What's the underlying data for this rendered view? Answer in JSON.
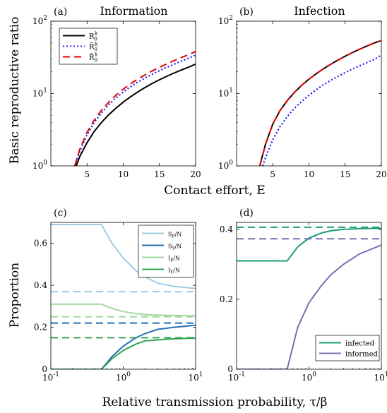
{
  "shared": {
    "top_xlabel": "Contact effort, E",
    "top_ylabel": "Basic reproductive ratio",
    "bottom_xlabel": "Relative transmission probability, τ/β",
    "bottom_ylabel": "Proportion"
  },
  "chart_data": [
    {
      "panel": "(a)",
      "title": "Information",
      "type": "line",
      "x_scale": "linear",
      "y_scale": "log",
      "xlim": [
        0,
        20
      ],
      "ylim": [
        1,
        100
      ],
      "x_ticks": [
        5,
        10,
        15,
        20
      ],
      "x_tick_labels": [
        "5",
        "10",
        "15",
        "20"
      ],
      "y_ticks": [
        1,
        10,
        100
      ],
      "y_tick_labels": [
        "10^0",
        "10^1",
        "10^2"
      ],
      "legend": "top-left",
      "series": [
        {
          "name": "R_0^k",
          "color": "#000000",
          "style": "solid",
          "x": [
            3.5,
            4,
            5,
            6,
            7,
            8,
            9,
            10,
            11,
            12,
            13,
            14,
            15,
            16,
            17,
            18,
            19,
            20
          ],
          "y": [
            1.0,
            1.35,
            2.1,
            3.0,
            4.0,
            5.1,
            6.3,
            7.6,
            9.0,
            10.5,
            12.1,
            13.8,
            15.5,
            17.3,
            19.2,
            21.1,
            23.1,
            25.5
          ]
        },
        {
          "name": "R̄_0^k",
          "color": "#1a1aff",
          "style": "dotted",
          "x": [
            3.3,
            4,
            5,
            6,
            7,
            8,
            9,
            10,
            11,
            12,
            13,
            14,
            15,
            16,
            17,
            18,
            19,
            20
          ],
          "y": [
            1.0,
            1.6,
            2.7,
            4.0,
            5.4,
            7.0,
            8.7,
            10.5,
            12.4,
            14.4,
            16.4,
            18.5,
            20.7,
            23.0,
            25.4,
            28.0,
            30.8,
            34.0
          ]
        },
        {
          "name": "R̃_0^k",
          "color": "#e00000",
          "style": "dashed",
          "x": [
            3.3,
            4,
            5,
            6,
            7,
            8,
            9,
            10,
            11,
            12,
            13,
            14,
            15,
            16,
            17,
            18,
            19,
            20
          ],
          "y": [
            1.0,
            1.7,
            2.9,
            4.3,
            5.9,
            7.6,
            9.5,
            11.5,
            13.6,
            15.8,
            18.1,
            20.5,
            23.0,
            25.6,
            28.4,
            31.3,
            34.4,
            38.0
          ]
        }
      ]
    },
    {
      "panel": "(b)",
      "title": "Infection",
      "type": "line",
      "x_scale": "linear",
      "y_scale": "log",
      "xlim": [
        0,
        20
      ],
      "ylim": [
        1,
        100
      ],
      "x_ticks": [
        5,
        10,
        15,
        20
      ],
      "x_tick_labels": [
        "5",
        "10",
        "15",
        "20"
      ],
      "y_ticks": [
        1,
        10,
        100
      ],
      "y_tick_labels": [
        "10^0",
        "10^1",
        "10^2"
      ],
      "series": [
        {
          "name": "R_0^k",
          "color": "#000000",
          "style": "solid",
          "x": [
            3.2,
            4,
            5,
            6,
            7,
            8,
            9,
            10,
            11,
            12,
            13,
            14,
            15,
            16,
            17,
            18,
            19,
            20
          ],
          "y": [
            1.0,
            2.0,
            3.8,
            5.8,
            8.0,
            10.4,
            13.0,
            15.8,
            18.8,
            22.0,
            25.4,
            29.0,
            32.8,
            36.8,
            41.0,
            45.4,
            50.0,
            54.0
          ]
        },
        {
          "name": "R̄_0^k",
          "color": "#1a1aff",
          "style": "dotted",
          "x": [
            3.6,
            4,
            5,
            6,
            7,
            8,
            9,
            10,
            11,
            12,
            13,
            14,
            15,
            16,
            17,
            18,
            19,
            20
          ],
          "y": [
            1.0,
            1.3,
            2.3,
            3.5,
            4.8,
            6.3,
            7.8,
            9.5,
            11.3,
            13.2,
            15.2,
            17.3,
            19.5,
            21.8,
            24.2,
            26.8,
            29.5,
            34.0
          ]
        },
        {
          "name": "R̃_0^k",
          "color": "#e00000",
          "style": "dashed",
          "x": [
            3.2,
            4,
            5,
            6,
            7,
            8,
            9,
            10,
            11,
            12,
            13,
            14,
            15,
            16,
            17,
            18,
            19,
            20
          ],
          "y": [
            1.0,
            2.0,
            3.8,
            5.8,
            8.0,
            10.4,
            13.0,
            15.8,
            18.8,
            22.0,
            25.4,
            29.0,
            32.8,
            36.8,
            41.0,
            45.4,
            50.0,
            54.0
          ]
        }
      ]
    },
    {
      "panel": "(c)",
      "type": "line",
      "x_scale": "log",
      "y_scale": "linear",
      "xlim": [
        0.1,
        10
      ],
      "ylim": [
        0,
        0.7
      ],
      "x_ticks": [
        0.1,
        1,
        10
      ],
      "x_tick_labels": [
        "10^-1",
        "10^0",
        "10^1"
      ],
      "y_ticks": [
        0,
        0.2,
        0.4,
        0.6
      ],
      "y_tick_labels": [
        "0",
        "0.2",
        "0.4",
        "0.6"
      ],
      "legend": "top-right",
      "series": [
        {
          "name": "S_P/N",
          "color": "#9ecae1",
          "style": "solid",
          "x": [
            0.1,
            0.2,
            0.3,
            0.4,
            0.5,
            0.7,
            1,
            1.5,
            2,
            3,
            5,
            10
          ],
          "y": [
            0.69,
            0.69,
            0.69,
            0.69,
            0.69,
            0.6,
            0.53,
            0.47,
            0.44,
            0.41,
            0.395,
            0.385
          ]
        },
        {
          "name": "S_P/N (dashed)",
          "color": "#9ecae1",
          "style": "dashed",
          "x": [
            0.1,
            10
          ],
          "y": [
            0.37,
            0.37
          ]
        },
        {
          "name": "S_Y/N",
          "color": "#2171b5",
          "style": "solid",
          "x": [
            0.1,
            0.3,
            0.5,
            0.7,
            1,
            1.5,
            2,
            3,
            5,
            10
          ],
          "y": [
            0,
            0,
            0,
            0.06,
            0.11,
            0.15,
            0.17,
            0.19,
            0.2,
            0.21
          ]
        },
        {
          "name": "S_Y/N (dashed)",
          "color": "#2171b5",
          "style": "dashed",
          "x": [
            0.1,
            10
          ],
          "y": [
            0.22,
            0.22
          ]
        },
        {
          "name": "I_P/N",
          "color": "#a1d99b",
          "style": "solid",
          "x": [
            0.1,
            0.3,
            0.5,
            0.7,
            1,
            1.5,
            2,
            3,
            5,
            10
          ],
          "y": [
            0.31,
            0.31,
            0.31,
            0.29,
            0.275,
            0.265,
            0.26,
            0.258,
            0.256,
            0.255
          ]
        },
        {
          "name": "I_P/N (dashed)",
          "color": "#a1d99b",
          "style": "dashed",
          "x": [
            0.1,
            10
          ],
          "y": [
            0.25,
            0.25
          ]
        },
        {
          "name": "I_Y/N",
          "color": "#31a354",
          "style": "solid",
          "x": [
            0.1,
            0.3,
            0.5,
            0.7,
            1,
            1.5,
            2,
            3,
            5,
            10
          ],
          "y": [
            0,
            0,
            0,
            0.05,
            0.09,
            0.12,
            0.135,
            0.14,
            0.145,
            0.148
          ]
        },
        {
          "name": "I_Y/N (dashed)",
          "color": "#31a354",
          "style": "dashed",
          "x": [
            0.1,
            10
          ],
          "y": [
            0.15,
            0.15
          ]
        }
      ]
    },
    {
      "panel": "(d)",
      "type": "line",
      "x_scale": "log",
      "y_scale": "linear",
      "xlim": [
        0.1,
        10
      ],
      "ylim": [
        0,
        0.42
      ],
      "x_ticks": [
        0.1,
        1,
        10
      ],
      "x_tick_labels": [
        "10^-1",
        "10^0",
        "10^1"
      ],
      "y_ticks": [
        0,
        0.2,
        0.4
      ],
      "y_tick_labels": [
        "0",
        "0.2",
        "0.4"
      ],
      "legend": "bottom-right",
      "series": [
        {
          "name": "infected",
          "color": "#1b9e77",
          "style": "solid",
          "x": [
            0.1,
            0.3,
            0.5,
            0.7,
            1,
            1.5,
            2,
            3,
            5,
            10
          ],
          "y": [
            0.31,
            0.31,
            0.31,
            0.35,
            0.375,
            0.39,
            0.396,
            0.4,
            0.402,
            0.403
          ]
        },
        {
          "name": "infected (dashed)",
          "color": "#1b9e77",
          "style": "dashed",
          "x": [
            0.1,
            10
          ],
          "y": [
            0.406,
            0.406
          ]
        },
        {
          "name": "informed",
          "color": "#7570b3",
          "style": "solid",
          "x": [
            0.1,
            0.3,
            0.5,
            0.7,
            1,
            1.5,
            2,
            3,
            5,
            10
          ],
          "y": [
            0,
            0,
            0,
            0.12,
            0.19,
            0.24,
            0.27,
            0.3,
            0.33,
            0.355
          ]
        },
        {
          "name": "informed (dashed)",
          "color": "#7570b3",
          "style": "dashed",
          "x": [
            0.1,
            10
          ],
          "y": [
            0.373,
            0.373
          ]
        }
      ]
    }
  ]
}
